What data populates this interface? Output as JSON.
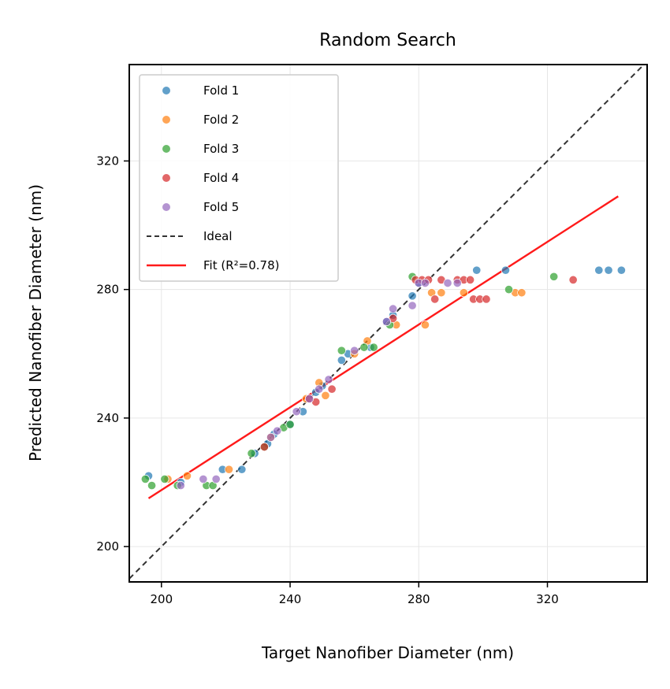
{
  "chart_data": {
    "type": "scatter",
    "title": "Random Search",
    "xlabel": "Target Nanofiber Diameter (nm)",
    "ylabel": "Predicted Nanofiber  Diameter (nm)",
    "xlim": [
      190,
      351
    ],
    "ylim": [
      189,
      350
    ],
    "xticks": [
      200,
      240,
      280,
      320
    ],
    "yticks": [
      200,
      240,
      280,
      320
    ],
    "grid": true,
    "legend_position": "top-left",
    "series": [
      {
        "name": "Fold 1",
        "color": "#1f77b4",
        "points": [
          [
            196,
            222
          ],
          [
            206,
            220
          ],
          [
            219,
            224
          ],
          [
            225,
            224
          ],
          [
            229,
            229
          ],
          [
            233,
            232
          ],
          [
            235,
            235
          ],
          [
            240,
            238
          ],
          [
            244,
            242
          ],
          [
            248,
            248
          ],
          [
            250,
            250
          ],
          [
            256,
            258
          ],
          [
            258,
            260
          ],
          [
            265,
            262
          ],
          [
            270,
            270
          ],
          [
            272,
            272
          ],
          [
            278,
            278
          ],
          [
            280,
            282
          ],
          [
            298,
            286
          ],
          [
            307,
            286
          ],
          [
            336,
            286
          ],
          [
            339,
            286
          ],
          [
            343,
            286
          ]
        ]
      },
      {
        "name": "Fold 2",
        "color": "#ff7f0e",
        "points": [
          [
            202,
            221
          ],
          [
            208,
            222
          ],
          [
            221,
            224
          ],
          [
            234,
            234
          ],
          [
            245,
            246
          ],
          [
            249,
            251
          ],
          [
            251,
            247
          ],
          [
            260,
            260
          ],
          [
            264,
            264
          ],
          [
            273,
            269
          ],
          [
            282,
            269
          ],
          [
            284,
            279
          ],
          [
            287,
            279
          ],
          [
            294,
            279
          ],
          [
            310,
            279
          ],
          [
            312,
            279
          ]
        ]
      },
      {
        "name": "Fold 3",
        "color": "#2ca02c",
        "points": [
          [
            195,
            221
          ],
          [
            197,
            219
          ],
          [
            201,
            221
          ],
          [
            205,
            219
          ],
          [
            214,
            219
          ],
          [
            216,
            219
          ],
          [
            228,
            229
          ],
          [
            232,
            231
          ],
          [
            238,
            237
          ],
          [
            240,
            238
          ],
          [
            256,
            261
          ],
          [
            263,
            262
          ],
          [
            266,
            262
          ],
          [
            271,
            269
          ],
          [
            278,
            284
          ],
          [
            308,
            280
          ],
          [
            322,
            284
          ]
        ]
      },
      {
        "name": "Fold 4",
        "color": "#d62728",
        "points": [
          [
            232,
            231
          ],
          [
            246,
            246
          ],
          [
            248,
            245
          ],
          [
            253,
            249
          ],
          [
            272,
            271
          ],
          [
            279,
            283
          ],
          [
            281,
            283
          ],
          [
            283,
            283
          ],
          [
            285,
            277
          ],
          [
            287,
            283
          ],
          [
            292,
            283
          ],
          [
            294,
            283
          ],
          [
            296,
            283
          ],
          [
            297,
            277
          ],
          [
            299,
            277
          ],
          [
            301,
            277
          ],
          [
            328,
            283
          ]
        ]
      },
      {
        "name": "Fold 5",
        "color": "#9467bd",
        "points": [
          [
            206,
            219
          ],
          [
            213,
            221
          ],
          [
            217,
            221
          ],
          [
            234,
            234
          ],
          [
            236,
            236
          ],
          [
            242,
            242
          ],
          [
            246,
            246
          ],
          [
            249,
            249
          ],
          [
            252,
            252
          ],
          [
            260,
            261
          ],
          [
            270,
            270
          ],
          [
            272,
            274
          ],
          [
            278,
            275
          ],
          [
            280,
            282
          ],
          [
            282,
            282
          ],
          [
            289,
            282
          ],
          [
            292,
            282
          ]
        ]
      }
    ],
    "ideal": {
      "name": "Ideal",
      "style": "dashed",
      "color": "#333333",
      "x": [
        190,
        351
      ],
      "y": [
        190,
        351
      ]
    },
    "fit": {
      "name": "Fit (R²=0.78)",
      "style": "solid",
      "color": "#ff1a1a",
      "x": [
        196,
        342
      ],
      "y": [
        215,
        309
      ]
    }
  }
}
